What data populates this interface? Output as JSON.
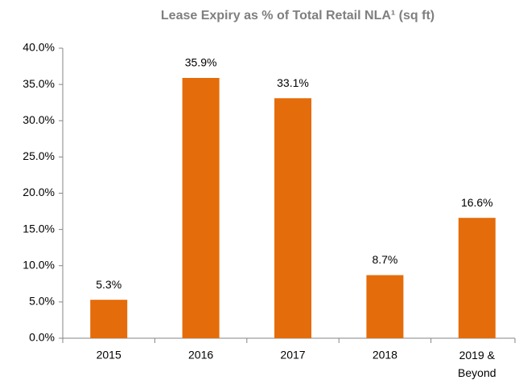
{
  "chart_data": {
    "type": "bar",
    "title": "Lease Expiry as % of Total Retail NLA¹ (sq ft)",
    "categories": [
      "2015",
      "2016",
      "2017",
      "2018",
      "2019 & Beyond"
    ],
    "values": [
      5.3,
      35.9,
      33.1,
      8.7,
      16.6
    ],
    "value_labels": [
      "5.3%",
      "35.9%",
      "33.1%",
      "8.7%",
      "16.6%"
    ],
    "color": "#e46c0a",
    "ylim": [
      0,
      40
    ],
    "yticks": [
      {
        "value": 0,
        "label": "0.0%"
      },
      {
        "value": 5,
        "label": "5.0%"
      },
      {
        "value": 10,
        "label": "10.0%"
      },
      {
        "value": 15,
        "label": "15.0%"
      },
      {
        "value": 20,
        "label": "20.0%"
      },
      {
        "value": 25,
        "label": "25.0%"
      },
      {
        "value": 30,
        "label": "30.0%"
      },
      {
        "value": 35,
        "label": "35.0%"
      },
      {
        "value": 40,
        "label": "40.0%"
      }
    ],
    "grid": false
  }
}
